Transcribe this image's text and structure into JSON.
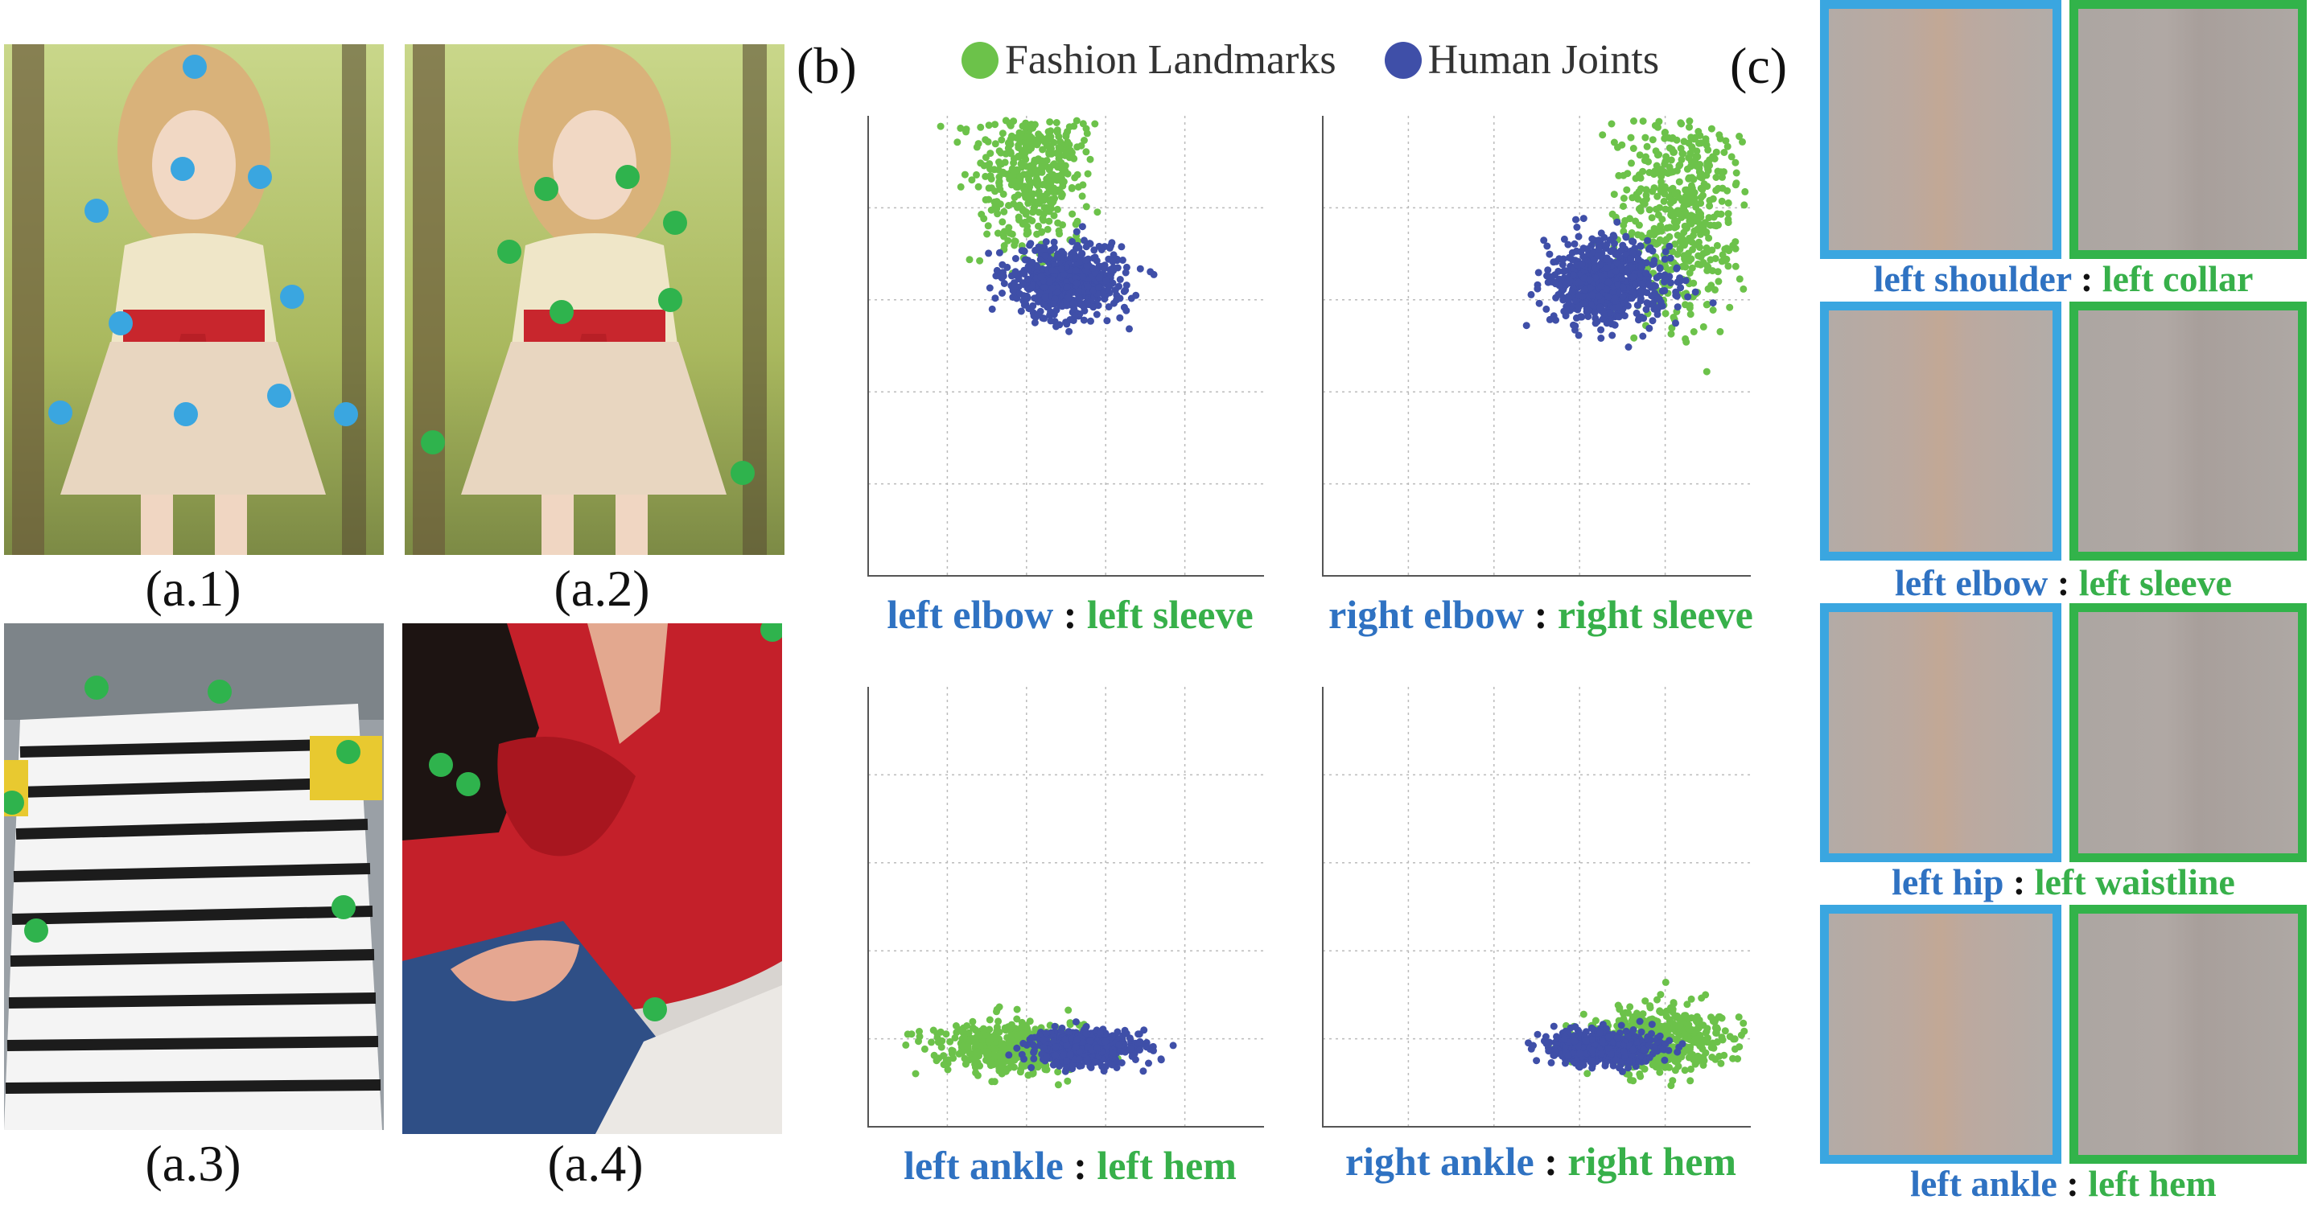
{
  "panel_a": {
    "labels": [
      "(a.1)",
      "(a.2)",
      "(a.3)",
      "(a.4)"
    ]
  },
  "panel_b": {
    "label": "(b)",
    "legend": [
      {
        "name": "Fashion Landmarks",
        "color": "#6cc24a"
      },
      {
        "name": "Human Joints",
        "color": "#3f4fa8"
      }
    ],
    "captions": [
      {
        "joint": "left elbow",
        "sep": ":",
        "landmark": "left sleeve"
      },
      {
        "joint": "right elbow",
        "sep": ":",
        "landmark": "right sleeve"
      },
      {
        "joint": "left ankle",
        "sep": ":",
        "landmark": "left hem"
      },
      {
        "joint": "right ankle",
        "sep": ":",
        "landmark": "right hem"
      }
    ]
  },
  "panel_c": {
    "label": "(c)",
    "pairs": [
      {
        "joint": "left shoulder",
        "sep": ":",
        "landmark": "left collar"
      },
      {
        "joint": "left elbow",
        "sep": ":",
        "landmark": "left sleeve"
      },
      {
        "joint": "left hip",
        "sep": ":",
        "landmark": "left waistline"
      },
      {
        "joint": "left ankle",
        "sep": ":",
        "landmark": "left hem"
      }
    ]
  },
  "colors": {
    "joint_marker": "#3aa6e0",
    "landmark_marker": "#2fb34d",
    "joint_text": "#2f72c2",
    "landmark_text": "#37b04a"
  },
  "chart_data": [
    {
      "type": "scatter",
      "series": [
        {
          "name": "Fashion Landmarks",
          "center": [
            2.5,
            4.5
          ],
          "spread": [
            1.0,
            1.2
          ]
        },
        {
          "name": "Human Joints",
          "center": [
            3.0,
            3.2
          ],
          "spread": [
            0.9,
            0.4
          ]
        }
      ]
    },
    {
      "type": "scatter",
      "series": [
        {
          "name": "Fashion Landmarks",
          "center": [
            5.0,
            4.0
          ],
          "spread": [
            1.0,
            1.4
          ]
        },
        {
          "name": "Human Joints",
          "center": [
            4.0,
            3.2
          ],
          "spread": [
            0.9,
            0.5
          ]
        }
      ]
    },
    {
      "type": "scatter",
      "series": [
        {
          "name": "Fashion Landmarks",
          "center": [
            2.2,
            0.9
          ],
          "spread": [
            1.2,
            0.3
          ]
        },
        {
          "name": "Human Joints",
          "center": [
            3.3,
            0.9
          ],
          "spread": [
            0.8,
            0.2
          ]
        }
      ]
    },
    {
      "type": "scatter",
      "series": [
        {
          "name": "Fashion Landmarks",
          "center": [
            4.7,
            1.0
          ],
          "spread": [
            1.1,
            0.4
          ]
        },
        {
          "name": "Human Joints",
          "center": [
            3.9,
            0.9
          ],
          "spread": [
            0.8,
            0.2
          ]
        }
      ]
    }
  ]
}
